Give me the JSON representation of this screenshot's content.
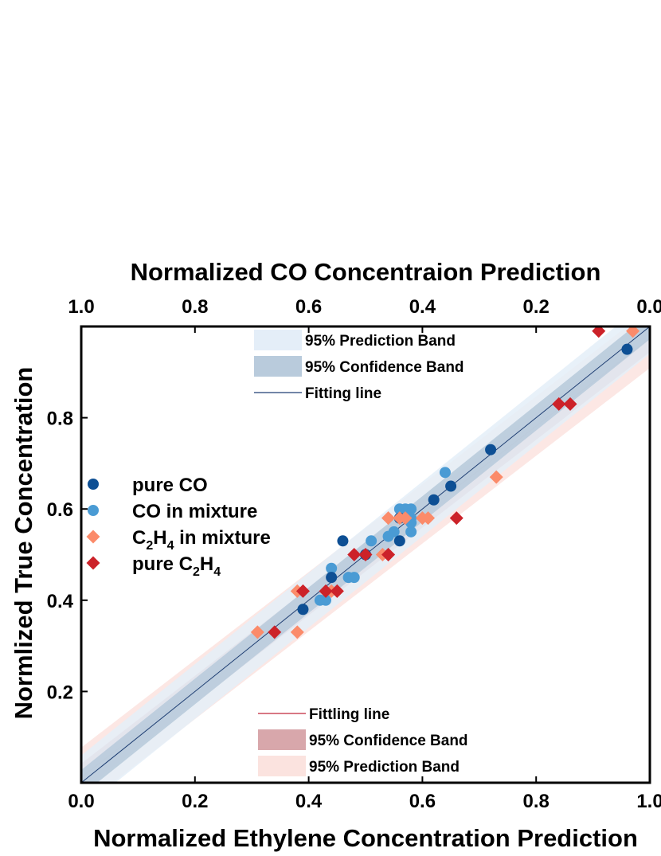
{
  "chart_data": {
    "type": "scatter",
    "x_top_label": "Normalized CO Concentraion Prediction",
    "x_bottom_label": "Normalized Ethylene Concentration Prediction",
    "y_label": "Normlized True Concentration",
    "x_bottom_range": [
      0.0,
      1.0
    ],
    "x_top_range": [
      1.0,
      0.0
    ],
    "y_range": [
      0.0,
      1.0
    ],
    "x_bottom_ticks": [
      "0.0",
      "0.2",
      "0.4",
      "0.6",
      "0.8",
      "1.0"
    ],
    "x_top_ticks": [
      "1.0",
      "0.8",
      "0.6",
      "0.4",
      "0.2",
      "0.0"
    ],
    "y_ticks": [
      "0.2",
      "0.4",
      "0.6",
      "0.8"
    ],
    "y_tick_values": [
      0.2,
      0.4,
      0.6,
      0.8
    ],
    "legend_placement": "center-left",
    "legend": [
      {
        "key": "pure_co",
        "label": "pure CO",
        "marker": "circle",
        "color": "#0d4f94"
      },
      {
        "key": "co_mix",
        "label": "CO in mixture",
        "marker": "circle",
        "color": "#4a9bd4"
      },
      {
        "key": "c2h4_mix",
        "label_parts": [
          "C",
          "2",
          "H",
          "4",
          " in mixture"
        ],
        "marker": "diamond",
        "color": "#fb8b6a"
      },
      {
        "key": "pure_c2h4",
        "label_parts": [
          "pure C",
          "2",
          "H",
          "4",
          ""
        ],
        "marker": "diamond",
        "color": "#cc2229"
      }
    ],
    "co_bands_legend": [
      {
        "label": "95% Prediction Band",
        "color": "#e4eef8"
      },
      {
        "label": "95% Confidence Band",
        "color": "#b9cbdc"
      },
      {
        "label": "Fitting line",
        "color": "#1f3f73"
      }
    ],
    "c2h4_bands_legend": [
      {
        "label": "Fittling line",
        "color": "#c0283a"
      },
      {
        "label": "95% Confidence Band",
        "color": "#d8a7ab"
      },
      {
        "label": "95% Prediction Band",
        "color": "#fbe3df"
      }
    ],
    "co_fit": {
      "slope": -1.0,
      "intercept": 1.0,
      "color": "#1f3f73",
      "conf_halfwidth": 0.028,
      "pred_halfwidth": 0.06,
      "conf_color": "#b9cbdc",
      "pred_color": "#e4eef8"
    },
    "c2h4_fit": {
      "slope": 0.962,
      "intercept": 0.012,
      "color": "#c0283a",
      "conf_halfwidth": 0.03,
      "pred_halfwidth": 0.065,
      "conf_color": "#d8a7ab",
      "pred_color": "#fbe3df"
    },
    "series": [
      {
        "key": "co_mix",
        "name": "CO in mixture",
        "x_axis": "top",
        "points": [
          [
            0.36,
            0.68
          ],
          [
            0.42,
            0.6
          ],
          [
            0.43,
            0.6
          ],
          [
            0.44,
            0.6
          ],
          [
            0.43,
            0.59
          ],
          [
            0.42,
            0.58
          ],
          [
            0.44,
            0.58
          ],
          [
            0.42,
            0.57
          ],
          [
            0.45,
            0.55
          ],
          [
            0.42,
            0.55
          ],
          [
            0.46,
            0.54
          ],
          [
            0.49,
            0.53
          ],
          [
            0.5,
            0.5
          ],
          [
            0.52,
            0.45
          ],
          [
            0.53,
            0.45
          ],
          [
            0.56,
            0.47
          ],
          [
            0.57,
            0.4
          ],
          [
            0.58,
            0.4
          ]
        ]
      },
      {
        "key": "pure_co",
        "name": "pure CO",
        "x_axis": "top",
        "points": [
          [
            0.04,
            0.95
          ],
          [
            0.28,
            0.73
          ],
          [
            0.35,
            0.65
          ],
          [
            0.38,
            0.62
          ],
          [
            0.44,
            0.58
          ],
          [
            0.44,
            0.53
          ],
          [
            0.54,
            0.53
          ],
          [
            0.5,
            0.5
          ],
          [
            0.56,
            0.45
          ],
          [
            0.61,
            0.38
          ]
        ]
      },
      {
        "key": "c2h4_mix",
        "name": "C2H4 in mixture",
        "x_axis": "bottom",
        "points": [
          [
            0.31,
            0.33
          ],
          [
            0.38,
            0.33
          ],
          [
            0.38,
            0.42
          ],
          [
            0.44,
            0.42
          ],
          [
            0.45,
            0.42
          ],
          [
            0.53,
            0.5
          ],
          [
            0.54,
            0.5
          ],
          [
            0.54,
            0.58
          ],
          [
            0.56,
            0.58
          ],
          [
            0.57,
            0.58
          ],
          [
            0.6,
            0.58
          ],
          [
            0.61,
            0.58
          ],
          [
            0.73,
            0.67
          ],
          [
            0.97,
            0.99
          ]
        ]
      },
      {
        "key": "pure_c2h4",
        "name": "pure C2H4",
        "x_axis": "bottom",
        "points": [
          [
            0.34,
            0.33
          ],
          [
            0.39,
            0.42
          ],
          [
            0.43,
            0.42
          ],
          [
            0.45,
            0.42
          ],
          [
            0.48,
            0.5
          ],
          [
            0.5,
            0.5
          ],
          [
            0.54,
            0.5
          ],
          [
            0.66,
            0.58
          ],
          [
            0.84,
            0.83
          ],
          [
            0.86,
            0.83
          ],
          [
            0.91,
            0.99
          ]
        ]
      }
    ]
  }
}
